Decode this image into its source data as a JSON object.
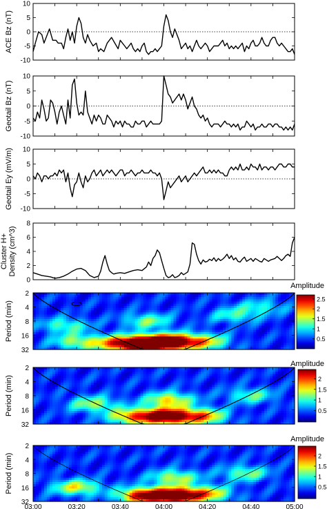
{
  "chart_data": [
    {
      "type": "line",
      "ylabel": "ACE Bz (nT)",
      "ylim": [
        -10,
        10
      ],
      "yticks": [
        10,
        5,
        0,
        -5,
        -10
      ],
      "reference_line": 0,
      "series": [
        {
          "x": [
            0,
            2,
            5,
            8,
            10,
            13,
            15,
            18,
            21,
            23,
            26,
            28,
            30,
            32,
            34,
            36,
            38,
            40,
            42,
            44,
            46,
            48,
            50,
            52,
            55,
            58,
            60,
            62,
            65,
            68,
            70,
            72,
            75,
            78,
            80,
            82,
            84,
            86,
            88,
            90,
            92,
            94,
            96,
            98,
            100,
            102,
            104,
            106,
            108,
            110,
            112,
            114,
            116,
            118,
            120,
            122,
            124,
            126,
            128,
            130,
            132,
            134,
            136,
            138,
            140,
            142,
            144,
            146,
            148,
            150,
            152,
            154,
            156,
            158,
            160,
            162,
            164,
            166,
            168,
            170,
            172,
            174,
            176,
            178,
            180,
            182,
            184,
            186,
            188,
            190,
            192,
            194,
            196,
            198,
            200,
            202,
            204,
            206,
            208,
            210,
            212,
            214,
            216,
            218,
            220,
            222,
            224,
            226,
            228,
            230,
            232,
            234,
            236,
            238,
            240
          ],
          "y": [
            -7,
            -4,
            0,
            -1,
            -4,
            -1,
            1,
            -3,
            -3,
            -4,
            -4,
            -6,
            -2,
            1,
            -3,
            0,
            -4,
            2,
            5,
            3,
            -2,
            -4,
            -1,
            -3,
            -5,
            -4,
            -7,
            -6,
            -7,
            -4,
            -3,
            -2,
            -4,
            -6,
            -3,
            -4,
            -5,
            -6,
            -5,
            -4,
            -6,
            -7,
            -6,
            -7,
            -5,
            -4,
            -7,
            -8,
            -7,
            -7,
            -6,
            -7,
            -6,
            -5,
            2,
            6,
            4,
            0,
            -2,
            1,
            -1,
            -3,
            -6,
            -5,
            -4,
            -6,
            -5,
            -7,
            -5,
            -3,
            -5,
            -6,
            -5,
            -4,
            -5,
            -7,
            -6,
            -5,
            -5,
            -5,
            -4,
            -3,
            -5,
            -4,
            -6,
            -5,
            -6,
            -5,
            -6,
            -5,
            -4,
            -7,
            -5,
            -6,
            -4,
            -3,
            -5,
            -5,
            -4,
            -2,
            -4,
            -5,
            -5,
            -3,
            -2,
            -2,
            -4,
            -5,
            -4,
            -5,
            -6,
            -7,
            -7,
            -6,
            -8
          ]
        }
      ]
    },
    {
      "type": "line",
      "ylabel": "Geotail Bz (nT)",
      "ylim": [
        -10,
        10
      ],
      "yticks": [
        10,
        5,
        0,
        -5,
        -10
      ],
      "reference_line": 0,
      "series": [
        {
          "x": [
            0,
            2,
            4,
            6,
            8,
            10,
            12,
            14,
            16,
            18,
            20,
            22,
            24,
            26,
            28,
            30,
            32,
            34,
            36,
            38,
            40,
            42,
            44,
            46,
            48,
            50,
            52,
            54,
            56,
            58,
            60,
            62,
            64,
            66,
            68,
            70,
            72,
            74,
            76,
            78,
            80,
            82,
            84,
            86,
            88,
            90,
            92,
            94,
            96,
            98,
            100,
            102,
            104,
            106,
            108,
            110,
            112,
            114,
            116,
            118,
            120,
            122,
            124,
            126,
            128,
            130,
            132,
            134,
            136,
            138,
            140,
            142,
            144,
            146,
            148,
            150,
            152,
            154,
            156,
            158,
            160,
            162,
            164,
            166,
            168,
            170,
            172,
            174,
            176,
            178,
            180,
            182,
            184,
            186,
            188,
            190,
            192,
            194,
            196,
            198,
            200,
            202,
            204,
            206,
            208,
            210,
            212,
            214,
            216,
            218,
            220,
            222,
            224,
            226,
            228,
            230,
            232,
            234,
            236,
            238,
            240
          ],
          "y": [
            -4,
            -5,
            -2,
            -4,
            2,
            -1,
            -5,
            -4,
            2,
            1,
            -2,
            -6,
            -2,
            0,
            -3,
            -6,
            2,
            -4,
            7,
            9,
            1,
            -3,
            -2,
            -3,
            5,
            -2,
            -4,
            -6,
            -3,
            -5,
            -3,
            -4,
            -6,
            -6,
            -3,
            -4,
            -5,
            -7,
            -5,
            -6,
            -5,
            -7,
            -5,
            -6,
            -6,
            -7,
            -7,
            -5,
            -6,
            -6,
            -5,
            -5,
            -7,
            -6,
            -5,
            -6,
            -6,
            -6,
            -6,
            -5,
            10,
            7,
            4,
            3,
            1,
            2,
            3,
            4,
            2,
            4,
            2,
            -1,
            1,
            3,
            0,
            -1,
            -3,
            -4,
            -3,
            -5,
            -4,
            -6,
            -7,
            -6,
            -6,
            -6,
            -7,
            -6,
            -5,
            -6,
            -6,
            -7,
            -6,
            -7,
            -6,
            -8,
            -7,
            -7,
            -5,
            -6,
            -7,
            -6,
            -8,
            -7,
            -7,
            -6,
            -7,
            -7,
            -6,
            -6,
            -7,
            -6,
            -6,
            -7,
            -7,
            -8,
            -7,
            -8,
            -7,
            -8,
            -6
          ]
        }
      ]
    },
    {
      "type": "line",
      "ylabel": "Geotail Ey (mV/m)",
      "ylim": [
        -10,
        10
      ],
      "yticks": [
        10,
        5,
        0,
        -5,
        -10
      ],
      "reference_line": 0,
      "series": [
        {
          "x": [
            0,
            2,
            4,
            6,
            8,
            10,
            12,
            14,
            16,
            18,
            20,
            22,
            24,
            26,
            28,
            30,
            32,
            34,
            36,
            38,
            40,
            42,
            44,
            46,
            48,
            50,
            52,
            54,
            56,
            58,
            60,
            62,
            64,
            66,
            68,
            70,
            72,
            74,
            76,
            78,
            80,
            82,
            84,
            86,
            88,
            90,
            92,
            94,
            96,
            98,
            100,
            102,
            104,
            106,
            108,
            110,
            112,
            114,
            116,
            118,
            120,
            122,
            124,
            126,
            128,
            130,
            132,
            134,
            136,
            138,
            140,
            142,
            144,
            146,
            148,
            150,
            152,
            154,
            156,
            158,
            160,
            162,
            164,
            166,
            168,
            170,
            172,
            174,
            176,
            178,
            180,
            182,
            184,
            186,
            188,
            190,
            192,
            194,
            196,
            198,
            200,
            202,
            204,
            206,
            208,
            210,
            212,
            214,
            216,
            218,
            220,
            222,
            224,
            226,
            228,
            230,
            232,
            234,
            236,
            238,
            240
          ],
          "y": [
            1,
            0,
            2,
            1,
            -1,
            1,
            1,
            0,
            1,
            1,
            2,
            1,
            3,
            2,
            3,
            -1,
            2,
            -3,
            -6,
            -2,
            -1,
            2,
            -1,
            -3,
            1,
            -1,
            0,
            2,
            3,
            1,
            2,
            3,
            1,
            2,
            3,
            2,
            3,
            2,
            1,
            2,
            3,
            3,
            1,
            2,
            2,
            3,
            2,
            1,
            2,
            2,
            3,
            2,
            2,
            2,
            3,
            2,
            2,
            1,
            2,
            0,
            -7,
            -4,
            -1,
            -3,
            -2,
            -1,
            0,
            1,
            -1,
            0,
            1,
            -1,
            0,
            1,
            2,
            1,
            2,
            3,
            4,
            2,
            2,
            3,
            2,
            3,
            2,
            3,
            2,
            2,
            1,
            1,
            3,
            4,
            3,
            4,
            3,
            5,
            3,
            3,
            4,
            3,
            5,
            4,
            4,
            3,
            5,
            3,
            4,
            4,
            3,
            4,
            4,
            3,
            4,
            5,
            5,
            4,
            4,
            5,
            5,
            4,
            4
          ]
        }
      ]
    },
    {
      "type": "line",
      "ylabel": "Cluster H+ Density (cm^3)",
      "ylim": [
        0,
        8
      ],
      "yticks": [
        8,
        6,
        4,
        2,
        0
      ],
      "series": [
        {
          "x": [
            0,
            4,
            8,
            12,
            16,
            20,
            24,
            28,
            32,
            36,
            40,
            44,
            48,
            52,
            56,
            60,
            62,
            64,
            66,
            68,
            70,
            72,
            74,
            76,
            80,
            84,
            88,
            92,
            96,
            100,
            104,
            106,
            108,
            110,
            112,
            114,
            116,
            118,
            120,
            122,
            124,
            126,
            128,
            130,
            132,
            134,
            136,
            138,
            140,
            142,
            144,
            146,
            148,
            150,
            152,
            154,
            156,
            158,
            160,
            162,
            164,
            166,
            168,
            170,
            172,
            174,
            176,
            178,
            180,
            182,
            184,
            186,
            188,
            190,
            192,
            194,
            196,
            198,
            200,
            202,
            204,
            206,
            208,
            210,
            212,
            214,
            216,
            218,
            220,
            222,
            224,
            226,
            228,
            230,
            232,
            234,
            236,
            238,
            240
          ],
          "y": [
            1,
            0.8,
            0.6,
            0.5,
            0.4,
            0.2,
            0.3,
            0.5,
            0.8,
            1.2,
            1.5,
            1.6,
            1.3,
            0.6,
            0.3,
            0.5,
            1.2,
            2.5,
            3.4,
            2.2,
            1.3,
            1.0,
            0.8,
            0.9,
            1.0,
            0.9,
            1.1,
            1.3,
            1.4,
            1.3,
            1.8,
            2.5,
            2.0,
            3.0,
            3.4,
            4.2,
            3.8,
            2.7,
            1.6,
            0.6,
            0.3,
            0.4,
            0.7,
            0.3,
            0.4,
            0.6,
            1.0,
            0.7,
            0.9,
            1.1,
            2.2,
            5.2,
            5.0,
            3.6,
            2.7,
            2.2,
            2.8,
            2.5,
            2.6,
            2.9,
            2.7,
            3.1,
            2.6,
            3.0,
            2.7,
            2.9,
            3.2,
            3.6,
            3.0,
            3.4,
            2.8,
            3.1,
            2.6,
            2.5,
            2.9,
            3.2,
            2.6,
            2.8,
            3.0,
            2.6,
            3.0,
            2.8,
            2.6,
            2.5,
            3.0,
            2.8,
            2.6,
            2.8,
            2.9,
            3.0,
            3.3,
            3.0,
            2.7,
            3.0,
            3.4,
            3.6,
            3.3,
            5.2,
            6.0
          ]
        }
      ]
    },
    {
      "type": "heatmap",
      "ylabel": "Period (min)",
      "yticks": [
        "2",
        "4",
        "8",
        "16",
        "32"
      ],
      "colorbar": {
        "label": "Amplitude",
        "range": [
          0,
          2.7
        ],
        "ticks": [
          "2.5",
          "2",
          "1.5",
          "1",
          "0.5"
        ]
      },
      "hotspots": [
        {
          "t": 104,
          "period": 24,
          "amplitude": 2.6
        },
        {
          "t": 128,
          "period": 22,
          "amplitude": 2.3
        },
        {
          "t": 78,
          "period": 24,
          "amplitude": 1.6
        },
        {
          "t": 40,
          "period": 22,
          "amplitude": 1.0
        },
        {
          "t": 158,
          "period": 22,
          "amplitude": 1.2
        },
        {
          "t": 105,
          "period": 8,
          "amplitude": 0.9
        },
        {
          "t": 30,
          "period": 10,
          "amplitude": 0.8
        },
        {
          "t": 185,
          "period": 6,
          "amplitude": 0.7
        },
        {
          "t": 210,
          "period": 4,
          "amplitude": 0.6
        }
      ]
    },
    {
      "type": "heatmap",
      "ylabel": "Period (min)",
      "yticks": [
        "2",
        "4",
        "8",
        "16",
        "32"
      ],
      "colorbar": {
        "label": "Amplitude",
        "range": [
          0,
          2.4
        ],
        "ticks": [
          "2",
          "1.5",
          "1",
          "0.5"
        ]
      },
      "hotspots": [
        {
          "t": 122,
          "period": 22,
          "amplitude": 2.3
        },
        {
          "t": 155,
          "period": 22,
          "amplitude": 1.4
        },
        {
          "t": 90,
          "period": 22,
          "amplitude": 1.3
        },
        {
          "t": 125,
          "period": 10,
          "amplitude": 1.2
        },
        {
          "t": 55,
          "period": 12,
          "amplitude": 0.9
        },
        {
          "t": 200,
          "period": 8,
          "amplitude": 0.7
        }
      ]
    },
    {
      "type": "heatmap",
      "ylabel": "Period (min)",
      "yticks": [
        "2",
        "4",
        "8",
        "16",
        "32"
      ],
      "xticks": [
        "03:00",
        "03:20",
        "03:40",
        "04:00",
        "04:20",
        "04:40",
        "05:00"
      ],
      "colorbar": {
        "label": "Amplitude",
        "range": [
          0,
          2.4
        ],
        "ticks": [
          "2",
          "1.5",
          "1",
          "0.5"
        ]
      },
      "hotspots": [
        {
          "t": 130,
          "period": 24,
          "amplitude": 2.3
        },
        {
          "t": 100,
          "period": 24,
          "amplitude": 1.8
        },
        {
          "t": 160,
          "period": 22,
          "amplitude": 1.2
        },
        {
          "t": 40,
          "period": 16,
          "amplitude": 1.1
        },
        {
          "t": 130,
          "period": 10,
          "amplitude": 1.0
        },
        {
          "t": 195,
          "period": 8,
          "amplitude": 0.8
        }
      ]
    }
  ]
}
